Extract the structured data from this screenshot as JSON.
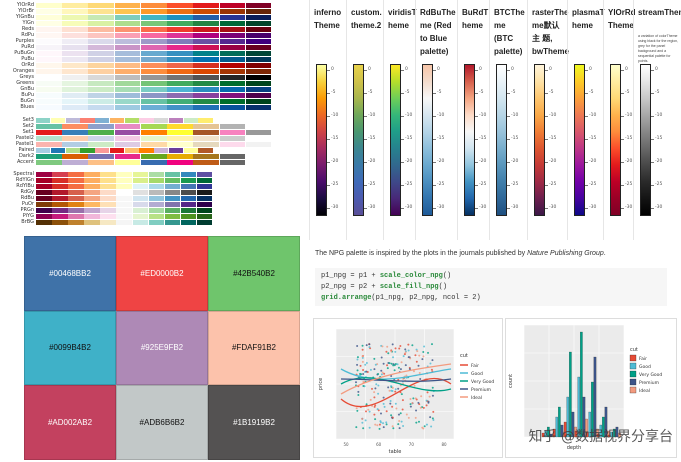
{
  "brewer": {
    "sequential": [
      {
        "name": "YlOrRd",
        "colors": [
          "#ffffcc",
          "#ffeda0",
          "#fed976",
          "#feb24c",
          "#fd8d3c",
          "#fc4e2a",
          "#e31a1c",
          "#bd0026",
          "#800026"
        ]
      },
      {
        "name": "YlOrBr",
        "colors": [
          "#ffffe5",
          "#fff7bc",
          "#fee391",
          "#fec44f",
          "#fe9929",
          "#ec7014",
          "#cc4c02",
          "#993404",
          "#662506"
        ]
      },
      {
        "name": "YlGnBu",
        "colors": [
          "#ffffd9",
          "#edf8b1",
          "#c7e9b4",
          "#7fcdbb",
          "#41b6c4",
          "#1d91c0",
          "#225ea8",
          "#253494",
          "#081d58"
        ]
      },
      {
        "name": "YlGn",
        "colors": [
          "#ffffe5",
          "#f7fcb9",
          "#d9f0a3",
          "#addd8e",
          "#78c679",
          "#41ab5d",
          "#238443",
          "#006837",
          "#004529"
        ]
      },
      {
        "name": "Reds",
        "colors": [
          "#fff5f0",
          "#fee0d2",
          "#fcbba1",
          "#fc9272",
          "#fb6a4a",
          "#ef3b2c",
          "#cb181d",
          "#a50f15",
          "#67000d"
        ]
      },
      {
        "name": "RdPu",
        "colors": [
          "#fff7f3",
          "#fde0dd",
          "#fcc5c0",
          "#fa9fb5",
          "#f768a1",
          "#dd3497",
          "#ae017e",
          "#7a0177",
          "#49006a"
        ]
      },
      {
        "name": "Purples",
        "colors": [
          "#fcfbfd",
          "#efedf5",
          "#dadaeb",
          "#bcbddc",
          "#9e9ac8",
          "#807dba",
          "#6a51a3",
          "#54278f",
          "#3f007d"
        ]
      },
      {
        "name": "PuRd",
        "colors": [
          "#f7f4f9",
          "#e7e1ef",
          "#d4b9da",
          "#c994c7",
          "#df65b0",
          "#e7298a",
          "#ce1256",
          "#980043",
          "#67001f"
        ]
      },
      {
        "name": "PuBuGn",
        "colors": [
          "#fff7fb",
          "#ece2f0",
          "#d0d1e6",
          "#a6bddb",
          "#67a9cf",
          "#3690c0",
          "#02818a",
          "#016c59",
          "#014636"
        ]
      },
      {
        "name": "PuBu",
        "colors": [
          "#fff7fb",
          "#ece7f2",
          "#d0d1e6",
          "#a6bddb",
          "#74a9cf",
          "#3690c0",
          "#0570b0",
          "#045a8d",
          "#023858"
        ]
      },
      {
        "name": "OrRd",
        "colors": [
          "#fff7ec",
          "#fee8c8",
          "#fdd49e",
          "#fdbb84",
          "#fc8d59",
          "#ef6548",
          "#d7301f",
          "#b30000",
          "#7f0000"
        ]
      },
      {
        "name": "Oranges",
        "colors": [
          "#fff5eb",
          "#fee6ce",
          "#fdd0a2",
          "#fdae6b",
          "#fd8d3c",
          "#f16913",
          "#d94801",
          "#a63603",
          "#7f2704"
        ]
      },
      {
        "name": "Greys",
        "colors": [
          "#ffffff",
          "#f0f0f0",
          "#d9d9d9",
          "#bdbdbd",
          "#969696",
          "#737373",
          "#525252",
          "#252525",
          "#000000"
        ]
      },
      {
        "name": "Greens",
        "colors": [
          "#f7fcf5",
          "#e5f5e0",
          "#c7e9c0",
          "#a1d99b",
          "#74c476",
          "#41ab5d",
          "#238b45",
          "#006d2c",
          "#00441b"
        ]
      },
      {
        "name": "GnBu",
        "colors": [
          "#f7fcf0",
          "#e0f3db",
          "#ccebc5",
          "#a8ddb5",
          "#7bccc4",
          "#4eb3d3",
          "#2b8cbe",
          "#0868ac",
          "#084081"
        ]
      },
      {
        "name": "BuPu",
        "colors": [
          "#f7fcfd",
          "#e0ecf4",
          "#bfd3e6",
          "#9ebcda",
          "#8c96c6",
          "#8c6bb1",
          "#88419d",
          "#810f7c",
          "#4d004b"
        ]
      },
      {
        "name": "BuGn",
        "colors": [
          "#f7fcfd",
          "#e5f5f9",
          "#ccece6",
          "#99d8c9",
          "#66c2a4",
          "#41ae76",
          "#238b45",
          "#006d2c",
          "#00441b"
        ]
      },
      {
        "name": "Blues",
        "colors": [
          "#f7fbff",
          "#deebf7",
          "#c6dbef",
          "#9ecae1",
          "#6baed6",
          "#4292c6",
          "#2171b5",
          "#08519c",
          "#08306b"
        ]
      }
    ],
    "qualitative": [
      {
        "name": "Set3",
        "colors": [
          "#8dd3c7",
          "#ffffb3",
          "#bebada",
          "#fb8072",
          "#80b1d3",
          "#fdb462",
          "#b3de69",
          "#fccde5",
          "#d9d9d9",
          "#bc80bd",
          "#ccebc5",
          "#ffed6f"
        ]
      },
      {
        "name": "Set2",
        "colors": [
          "#66c2a5",
          "#fc8d62",
          "#8da0cb",
          "#e78ac3",
          "#a6d854",
          "#ffd92f",
          "#e5c494",
          "#b3b3b3"
        ]
      },
      {
        "name": "Set1",
        "colors": [
          "#e41a1c",
          "#377eb8",
          "#4daf4a",
          "#984ea3",
          "#ff7f00",
          "#ffff33",
          "#a65628",
          "#f781bf",
          "#999999"
        ]
      },
      {
        "name": "Pastel2",
        "colors": [
          "#b3e2cd",
          "#fdcdac",
          "#cbd5e8",
          "#f4cae4",
          "#e6f5c9",
          "#fff2ae",
          "#f1e2cc",
          "#cccccc"
        ]
      },
      {
        "name": "Pastel1",
        "colors": [
          "#fbb4ae",
          "#b3cde3",
          "#ccebc5",
          "#decbe4",
          "#fed9a6",
          "#ffffcc",
          "#e5d8bd",
          "#fddaec",
          "#f2f2f2"
        ]
      },
      {
        "name": "Paired",
        "colors": [
          "#a6cee3",
          "#1f78b4",
          "#b2df8a",
          "#33a02c",
          "#fb9a99",
          "#e31a1c",
          "#fdbf6f",
          "#ff7f00",
          "#cab2d6",
          "#6a3d9a",
          "#ffff99",
          "#b15928"
        ]
      },
      {
        "name": "Dark2",
        "colors": [
          "#1b9e77",
          "#d95f02",
          "#7570b3",
          "#e7298a",
          "#66a61e",
          "#e6ab02",
          "#a6761d",
          "#666666"
        ]
      },
      {
        "name": "Accent",
        "colors": [
          "#7fc97f",
          "#beaed4",
          "#fdc086",
          "#ffff99",
          "#386cb0",
          "#f0027f",
          "#bf5b17",
          "#666666"
        ]
      }
    ],
    "diverging": [
      {
        "name": "Spectral",
        "colors": [
          "#9e0142",
          "#d53e4f",
          "#f46d43",
          "#fdae61",
          "#fee08b",
          "#ffffbf",
          "#e6f598",
          "#abdda4",
          "#66c2a5",
          "#3288bd",
          "#5e4fa2"
        ]
      },
      {
        "name": "RdYlGn",
        "colors": [
          "#a50026",
          "#d73027",
          "#f46d43",
          "#fdae61",
          "#fee08b",
          "#ffffbf",
          "#d9ef8b",
          "#a6d96a",
          "#66bd63",
          "#1a9850",
          "#006837"
        ]
      },
      {
        "name": "RdYlBu",
        "colors": [
          "#a50026",
          "#d73027",
          "#f46d43",
          "#fdae61",
          "#fee090",
          "#ffffbf",
          "#e0f3f8",
          "#abd9e9",
          "#74add1",
          "#4575b4",
          "#313695"
        ]
      },
      {
        "name": "RdGy",
        "colors": [
          "#67001f",
          "#b2182b",
          "#d6604d",
          "#f4a582",
          "#fddbc7",
          "#ffffff",
          "#e0e0e0",
          "#bababa",
          "#878787",
          "#4d4d4d",
          "#1a1a1a"
        ]
      },
      {
        "name": "RdBu",
        "colors": [
          "#67001f",
          "#b2182b",
          "#d6604d",
          "#f4a582",
          "#fddbc7",
          "#f7f7f7",
          "#d1e5f0",
          "#92c5de",
          "#4393c3",
          "#2166ac",
          "#053061"
        ]
      },
      {
        "name": "PuOr",
        "colors": [
          "#7f3b08",
          "#b35806",
          "#e08214",
          "#fdb863",
          "#fee0b6",
          "#f7f7f7",
          "#d8daeb",
          "#b2abd2",
          "#8073ac",
          "#542788",
          "#2d004b"
        ]
      },
      {
        "name": "PRGn",
        "colors": [
          "#40004b",
          "#762a83",
          "#9970ab",
          "#c2a5cf",
          "#e7d4e8",
          "#f7f7f7",
          "#d9f0d3",
          "#a6dba0",
          "#5aae61",
          "#1b7837",
          "#00441b"
        ]
      },
      {
        "name": "PiYG",
        "colors": [
          "#8e0152",
          "#c51b7d",
          "#de77ae",
          "#f1b6da",
          "#fde0ef",
          "#f7f7f7",
          "#e6f5d0",
          "#b8e186",
          "#7fbc41",
          "#4d9221",
          "#276419"
        ]
      },
      {
        "name": "BrBG",
        "colors": [
          "#543005",
          "#8c510a",
          "#bf812d",
          "#dfc27d",
          "#f6e8c3",
          "#f5f5f5",
          "#c7eae5",
          "#80cdc1",
          "#35978f",
          "#01665e",
          "#003c30"
        ]
      }
    ]
  },
  "npg_grid": [
    {
      "label": "#00468BB2",
      "color": "#3f72a8",
      "dark": false
    },
    {
      "label": "#ED0000B2",
      "color": "#ef4444",
      "dark": false
    },
    {
      "label": "#42B540B2",
      "color": "#6fc56c",
      "dark": true
    },
    {
      "label": "#0099B4B2",
      "color": "#3fb1c8",
      "dark": true
    },
    {
      "label": "#925E9FB2",
      "color": "#ae89b6",
      "dark": false
    },
    {
      "label": "#FDAF91B2",
      "color": "#fcc2ab",
      "dark": true
    },
    {
      "label": "#AD002AB2",
      "color": "#c3415f",
      "dark": false
    },
    {
      "label": "#ADB6B6B2",
      "color": "#c2c8c8",
      "dark": true
    },
    {
      "label": "#1B1919B2",
      "color": "#545252",
      "dark": false
    }
  ],
  "theme_table": {
    "columns": [
      {
        "header": "inferno Theme",
        "colors": [
          "#fcffa4",
          "#f7d13d",
          "#fb9b06",
          "#ed6925",
          "#cf4446",
          "#a52c60",
          "#781c6d",
          "#4a0c6b",
          "#1b0c41",
          "#000004"
        ]
      },
      {
        "header": "custom. theme.2",
        "colors": [
          "#e8d24a",
          "#cfc24a",
          "#a8b64d",
          "#6fa85a",
          "#4a9770",
          "#3c8690",
          "#3a7aa8",
          "#3f6ab8",
          "#4c5bb0",
          "#5a4f98"
        ]
      },
      {
        "header": "viridisT heme",
        "colors": [
          "#fde725",
          "#b5de2b",
          "#6ece58",
          "#35b779",
          "#1f9e89",
          "#26828e",
          "#31688e",
          "#3e4989",
          "#482878",
          "#440154"
        ]
      },
      {
        "header": "RdBuThe me (Red to Blue palette)",
        "colors": [
          "#f7c5a8",
          "#f3dccd",
          "#f7f7f7",
          "#d6e6f0",
          "#b4d4e7",
          "#8dbfdc",
          "#6aa9cf",
          "#4b8fc0",
          "#3274ae",
          "#1f5b99"
        ]
      },
      {
        "header": "BuRdT heme",
        "colors": [
          "#b2182b",
          "#d6604d",
          "#f4a582",
          "#fddbc7",
          "#f7f7f7",
          "#d1e5f0",
          "#92c5de",
          "#4393c3",
          "#2166ac",
          "#053061"
        ]
      },
      {
        "header": "BTCThe me (BTC palette)",
        "colors": [
          "#ffffff",
          "#eaf3f8",
          "#d3e6f0",
          "#b7d6e6",
          "#99c3db",
          "#78aecd",
          "#5a97bd",
          "#417fab",
          "#2f6899",
          "#1e4f80"
        ]
      },
      {
        "header": "rasterThe me默认主 题, bwTheme",
        "colors": [
          "#fff5dc",
          "#fee2a6",
          "#fdc66f",
          "#f9a847",
          "#ef7d35",
          "#dd5630",
          "#c43a36",
          "#9e2a45",
          "#6c1f4e",
          "#3b1848"
        ]
      },
      {
        "header": "plasmaT heme",
        "colors": [
          "#f0f921",
          "#fdca26",
          "#fb9f3a",
          "#ed7953",
          "#d8576b",
          "#bd3786",
          "#9c179e",
          "#7201a8",
          "#46039f",
          "#0d0887"
        ]
      },
      {
        "header": "YlOrRd Theme",
        "colors": [
          "#ffffcc",
          "#ffeda0",
          "#fed976",
          "#feb24c",
          "#fd8d3c",
          "#fc4e2a",
          "#e31a1c",
          "#bd0026",
          "#9a0026",
          "#800026"
        ]
      },
      {
        "header": "streamTheme.",
        "desc": "a variation of colorTheme using black for the region, grey for the panel background and a sequential palette for points.",
        "colors": [
          "#ffffff",
          "#e6e6e6",
          "#c8c8c8",
          "#a8a8a8",
          "#888888",
          "#686868",
          "#484848",
          "#2a2a2a",
          "#141414",
          "#000000"
        ]
      }
    ],
    "ticks": [
      "0",
      "-5",
      "-10",
      "-15",
      "-20",
      "-25",
      "-30"
    ]
  },
  "npg_intro": {
    "prefix": "The NPG palette is inspired by the plots in the journals published by ",
    "italic": "Nature Publishing Group",
    "suffix": "."
  },
  "code": {
    "line1_a": "p1_npg = p1 + ",
    "line1_fn": "scale_color_npg",
    "line1_b": "()",
    "line2_a": "p2_npg = p2 + ",
    "line2_fn": "scale_fill_npg",
    "line2_b": "()",
    "line3_fn": "grid.arrange",
    "line3_b": "(p1_npg, p2_npg, ncol = 2)"
  },
  "plot1": {
    "xlabel": "table",
    "ylabel": "price",
    "legend_title": "cut",
    "legend": [
      {
        "name": "Fair",
        "color": "#e64b35"
      },
      {
        "name": "Good",
        "color": "#4dbbd5"
      },
      {
        "name": "Very Good",
        "color": "#00a087"
      },
      {
        "name": "Premium",
        "color": "#3c5488"
      },
      {
        "name": "Ideal",
        "color": "#f39b7f"
      }
    ],
    "xticks": [
      "50",
      "60",
      "70",
      "80"
    ]
  },
  "plot2": {
    "xlabel": "depth",
    "ylabel": "count",
    "legend_title": "cut",
    "legend": [
      {
        "name": "Fair",
        "color": "#e64b35"
      },
      {
        "name": "Good",
        "color": "#4dbbd5"
      },
      {
        "name": "Very Good",
        "color": "#00a087"
      },
      {
        "name": "Premium",
        "color": "#3c5488"
      },
      {
        "name": "Ideal",
        "color": "#f39b7f"
      }
    ]
  },
  "watermark": "知乎 @数据视界分享台"
}
